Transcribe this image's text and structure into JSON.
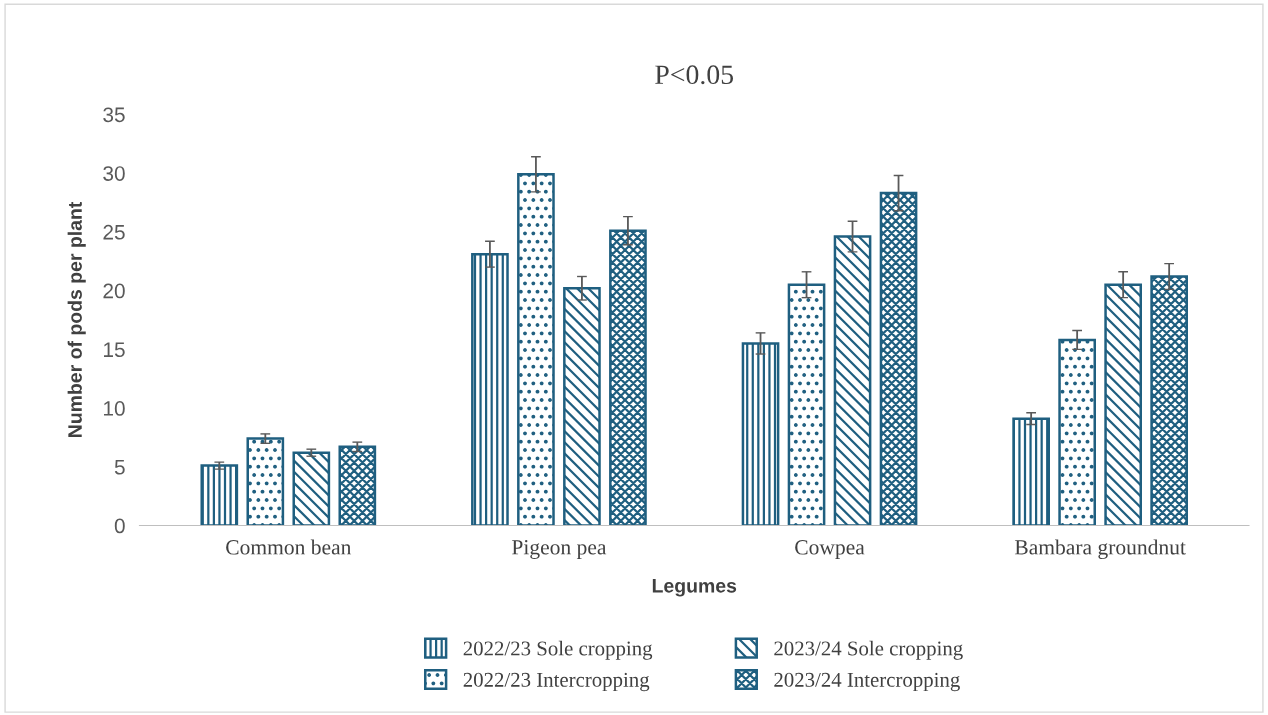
{
  "chart_data": {
    "type": "bar",
    "title": "P<0.05",
    "xlabel": "Legumes",
    "ylabel": "Number of pods per plant",
    "categories": [
      "Common bean",
      "Pigeon pea",
      "Cowpea",
      "Bambara groundnut"
    ],
    "series": [
      {
        "name": "2022/23 Sole cropping",
        "color": "#1f5f80",
        "values": [
          5.1,
          23.1,
          15.5,
          9.1
        ],
        "errors": [
          0.3,
          1.1,
          0.9,
          0.5
        ]
      },
      {
        "name": "2022/23 Intercropping",
        "color": "#1f5f80",
        "values": [
          7.4,
          29.9,
          20.5,
          15.8
        ],
        "errors": [
          0.4,
          1.5,
          1.1,
          0.8
        ]
      },
      {
        "name": "2023/24 Sole cropping",
        "color": "#1f5f80",
        "values": [
          6.2,
          20.2,
          24.6,
          20.5
        ],
        "errors": [
          0.3,
          1.0,
          1.3,
          1.1
        ]
      },
      {
        "name": "2023/24 Intercropping",
        "color": "#1f5f80",
        "values": [
          6.7,
          25.1,
          28.3,
          21.2
        ],
        "errors": [
          0.4,
          1.2,
          1.5,
          1.1
        ]
      }
    ],
    "ylim": [
      0,
      35
    ],
    "yticks": [
      0,
      5,
      10,
      15,
      20,
      25,
      30,
      35
    ],
    "grid": false,
    "legend": "bottom"
  }
}
